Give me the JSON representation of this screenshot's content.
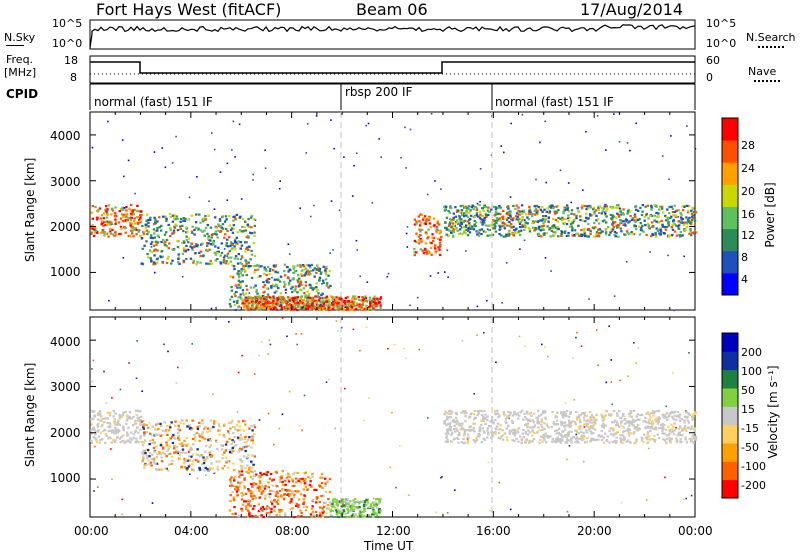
{
  "header": {
    "site": "Fort Hays West (fitACF)",
    "beam": "Beam 06",
    "date": "17/Aug/2014"
  },
  "panels": {
    "nsky": {
      "left_label": "N.Sky",
      "right_label": "N.Search",
      "ticks_left": [
        "10^5",
        "10^0"
      ],
      "ticks_right": [
        "10^5",
        "10^0"
      ]
    },
    "freq": {
      "left_label_1": "Freq.",
      "left_label_2": "[MHz]",
      "right_label": "Nave",
      "ticks_left": [
        "18",
        "8"
      ],
      "ticks_right": [
        "60",
        "0"
      ]
    },
    "cpid": {
      "label": "CPID",
      "segments": [
        "normal (fast) 151 IF",
        "rbsp 200 IF",
        "normal (fast) 151 IF"
      ]
    }
  },
  "axes": {
    "ylabel": "Slant Range [km]",
    "xlabel": "Time UT",
    "yticks": [
      "4000",
      "3000",
      "2000",
      "1000"
    ],
    "xticks": [
      "00:00",
      "04:00",
      "08:00",
      "12:00",
      "16:00",
      "20:00",
      "00:00"
    ]
  },
  "colorbars": {
    "power": {
      "label": "Power [dB]",
      "ticks": [
        "28",
        "24",
        "20",
        "16",
        "12",
        "8",
        "4"
      ]
    },
    "velocity": {
      "label": "Velocity [m s⁻¹]",
      "ticks": [
        "200",
        "100",
        "50",
        "15",
        "-15",
        "-50",
        "-100",
        "-200"
      ]
    }
  },
  "chart_data": [
    {
      "type": "heatmap",
      "title": "Power",
      "xlabel": "Time UT",
      "ylabel": "Slant Range [km]",
      "xlim_hours": [
        0,
        24
      ],
      "ylim_km": [
        180,
        4500
      ],
      "colorbar": {
        "label": "Power [dB]",
        "range": [
          0,
          30
        ],
        "colors": [
          "#0000ff",
          "#2050c0",
          "#2e8b57",
          "#60c060",
          "#c8d800",
          "#ffa000",
          "#ff5000",
          "#ff0000"
        ]
      },
      "regions": [
        {
          "t": [
            0.0,
            2.0
          ],
          "r": [
            1800,
            2500
          ],
          "level": "high"
        },
        {
          "t": [
            2.0,
            6.5
          ],
          "r": [
            1200,
            2300
          ],
          "level": "medium"
        },
        {
          "t": [
            5.5,
            9.5
          ],
          "r": [
            200,
            1200
          ],
          "level": "medium"
        },
        {
          "t": [
            6.0,
            11.5
          ],
          "r": [
            200,
            500
          ],
          "level": "high"
        },
        {
          "t": [
            12.8,
            13.9
          ],
          "r": [
            1400,
            2300
          ],
          "level": "high"
        },
        {
          "t": [
            14.0,
            24.0
          ],
          "r": [
            1800,
            2500
          ],
          "level": "medium"
        }
      ]
    },
    {
      "type": "heatmap",
      "title": "Velocity",
      "xlabel": "Time UT",
      "ylabel": "Slant Range [km]",
      "xlim_hours": [
        0,
        24
      ],
      "ylim_km": [
        180,
        4500
      ],
      "colorbar": {
        "label": "Velocity [m s⁻¹]",
        "range": [
          -200,
          200
        ],
        "colors": [
          "#ff0000",
          "#ff6000",
          "#ffa000",
          "#ffd060",
          "#c8c8c8",
          "#80d040",
          "#208040",
          "#1030a0",
          "#0000c0"
        ]
      },
      "regions": [
        {
          "t": [
            0.0,
            2.0
          ],
          "r": [
            1800,
            2500
          ],
          "level": "ground"
        },
        {
          "t": [
            2.0,
            6.5
          ],
          "r": [
            1200,
            2300
          ],
          "level": "mixed"
        },
        {
          "t": [
            5.5,
            9.5
          ],
          "r": [
            200,
            1200
          ],
          "level": "negative"
        },
        {
          "t": [
            9.5,
            11.5
          ],
          "r": [
            200,
            600
          ],
          "level": "positive"
        },
        {
          "t": [
            14.0,
            24.0
          ],
          "r": [
            1800,
            2500
          ],
          "level": "ground"
        }
      ]
    }
  ]
}
